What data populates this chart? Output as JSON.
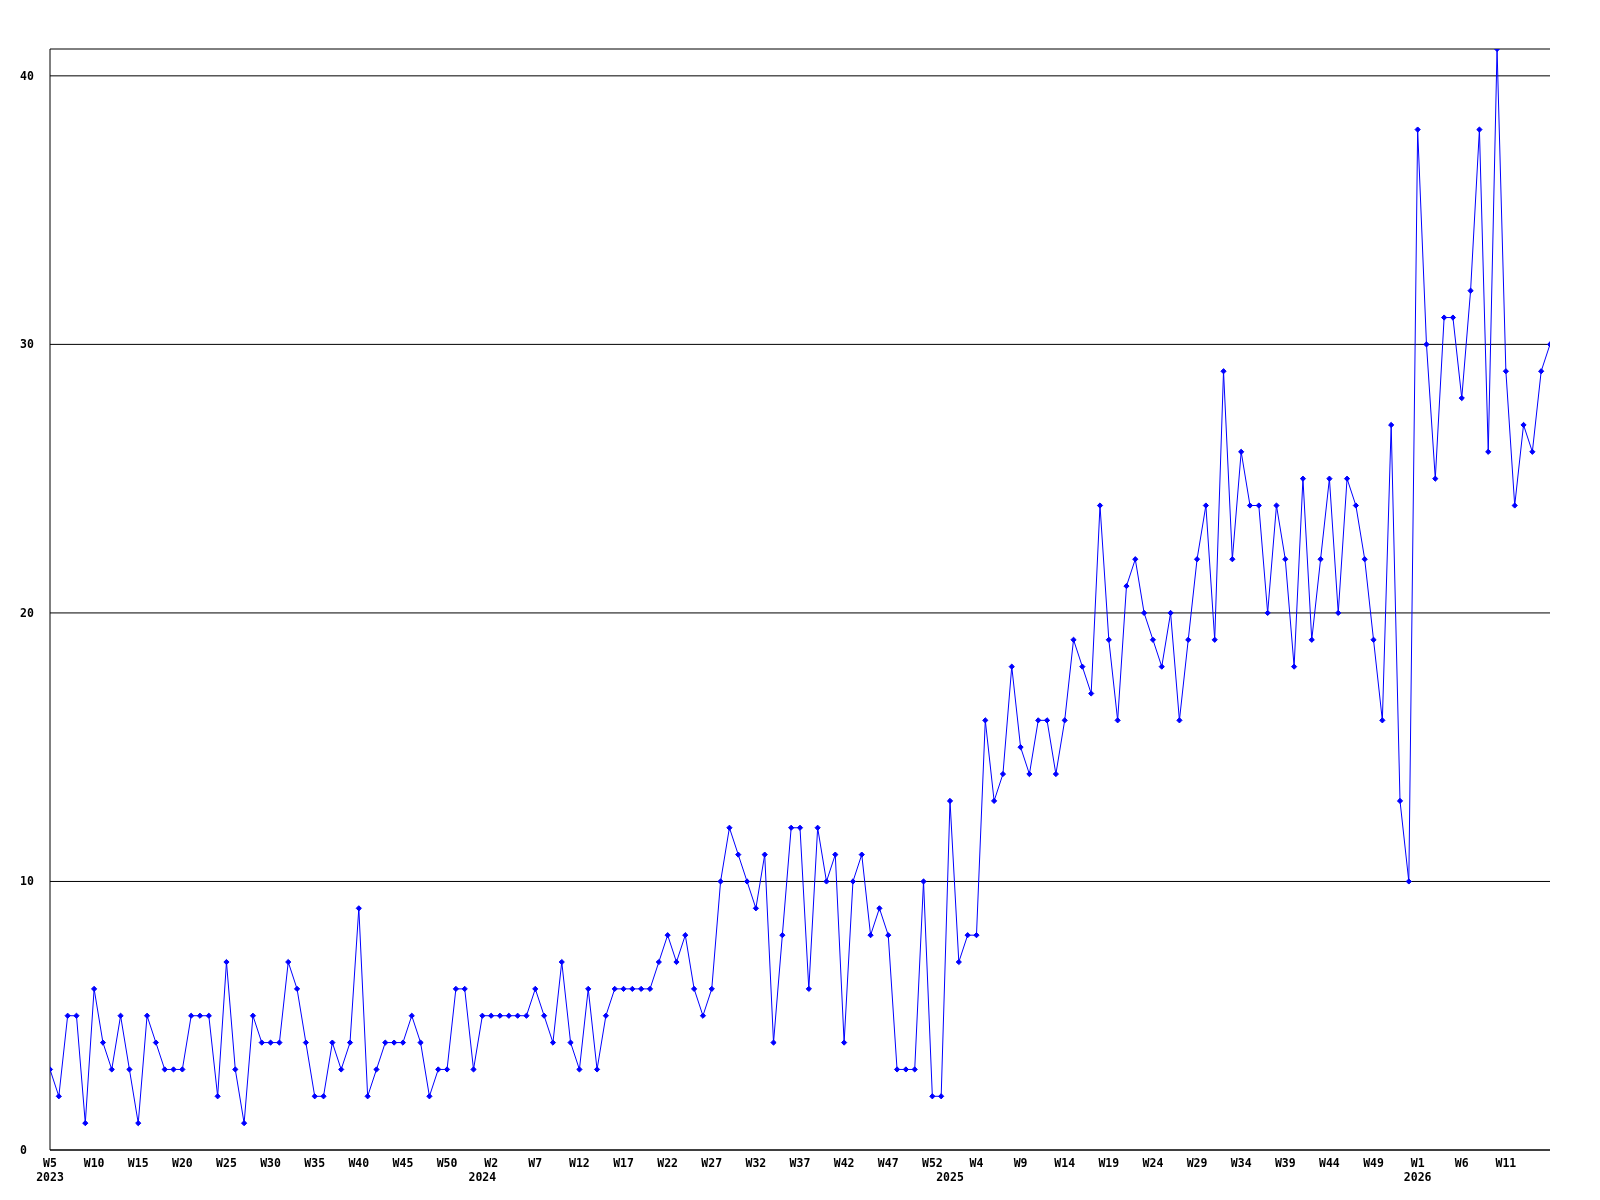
{
  "chart_data": {
    "type": "line",
    "categories": [
      "W5\n2023",
      null,
      null,
      null,
      null,
      "W10",
      null,
      null,
      null,
      null,
      "W15",
      null,
      null,
      null,
      null,
      "W20",
      null,
      null,
      null,
      null,
      "W25",
      null,
      null,
      null,
      null,
      "W30",
      null,
      null,
      null,
      null,
      "W35",
      null,
      null,
      null,
      null,
      "W40",
      null,
      null,
      null,
      null,
      "W45",
      null,
      null,
      null,
      null,
      "W50",
      null,
      null,
      null,
      "\n2024",
      "W2",
      null,
      null,
      null,
      null,
      "W7",
      null,
      null,
      null,
      null,
      "W12",
      null,
      null,
      null,
      null,
      "W17",
      null,
      null,
      null,
      null,
      "W22",
      null,
      null,
      null,
      null,
      "W27",
      null,
      null,
      null,
      null,
      "W32",
      null,
      null,
      null,
      null,
      "W37",
      null,
      null,
      null,
      null,
      "W42",
      null,
      null,
      null,
      null,
      "W47",
      null,
      null,
      null,
      null,
      "W52",
      null,
      "\n2025",
      null,
      null,
      "W4",
      null,
      null,
      null,
      null,
      "W9",
      null,
      null,
      null,
      null,
      "W14",
      null,
      null,
      null,
      null,
      "W19",
      null,
      null,
      null,
      null,
      "W24",
      null,
      null,
      null,
      null,
      "W29",
      null,
      null,
      null,
      null,
      "W34",
      null,
      null,
      null,
      null,
      "W39",
      null,
      null,
      null,
      null,
      "W44",
      null,
      null,
      null,
      null,
      "W49",
      null,
      null,
      null,
      null,
      "W1\n2026",
      null,
      null,
      null,
      null,
      "W6",
      null,
      null,
      null,
      null,
      "W11",
      null,
      null,
      null,
      null,
      null
    ],
    "series": [
      {
        "color": "#0000ff",
        "values": [
          3,
          2,
          5,
          5,
          1,
          6,
          4,
          3,
          5,
          3,
          1,
          5,
          4,
          3,
          3,
          3,
          5,
          5,
          5,
          2,
          7,
          3,
          1,
          5,
          4,
          4,
          4,
          7,
          6,
          4,
          2,
          2,
          4,
          3,
          4,
          9,
          2,
          3,
          4,
          4,
          4,
          5,
          4,
          2,
          3,
          3,
          6,
          6,
          3,
          5,
          5,
          5,
          5,
          5,
          5,
          6,
          5,
          4,
          7,
          4,
          3,
          6,
          3,
          5,
          6,
          6,
          6,
          6,
          6,
          7,
          8,
          7,
          8,
          6,
          5,
          6,
          10,
          12,
          11,
          10,
          9,
          11,
          4,
          8,
          12,
          12,
          6,
          12,
          10,
          11,
          4,
          10,
          11,
          8,
          9,
          8,
          3,
          3,
          3,
          10,
          2,
          2,
          13,
          7,
          8,
          8,
          16,
          13,
          14,
          18,
          15,
          14,
          16,
          16,
          14,
          16,
          19,
          18,
          17,
          24,
          19,
          16,
          21,
          22,
          20,
          19,
          18,
          20,
          16,
          19,
          22,
          24,
          19,
          29,
          22,
          26,
          24,
          24,
          20,
          24,
          22,
          18,
          25,
          19,
          22,
          25,
          20,
          25,
          24,
          22,
          19,
          16,
          27,
          13,
          10,
          38,
          30,
          25,
          31,
          31,
          28,
          32,
          38,
          26,
          41,
          29,
          24,
          27,
          26,
          29,
          30
        ]
      }
    ],
    "ylim": [
      0,
      41
    ],
    "yticks": [
      0,
      10,
      20,
      30,
      40
    ],
    "grid": "y",
    "marker": "diamond",
    "line_style": "solid"
  }
}
